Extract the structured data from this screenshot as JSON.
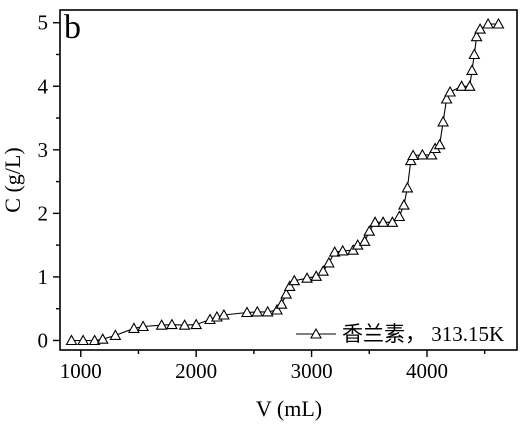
{
  "chart_data": {
    "type": "line",
    "panel_label": "b",
    "xlabel": "V (mL)",
    "ylabel": "C (g/L)",
    "xlim": [
      820,
      4780
    ],
    "ylim": [
      -0.15,
      5.2
    ],
    "xticks": [
      1000,
      2000,
      3000,
      4000
    ],
    "yticks": [
      0,
      1,
      2,
      3,
      4,
      5
    ],
    "x_minor_step": 500,
    "y_minor_step": 0.5,
    "marker": "open-triangle",
    "legend_position": "bottom-right",
    "series": [
      {
        "name": "香兰素， 313.15K",
        "color": "#000000",
        "points": [
          [
            920,
            0.0
          ],
          [
            1020,
            0.0
          ],
          [
            1120,
            0.0
          ],
          [
            1190,
            0.02
          ],
          [
            1300,
            0.08
          ],
          [
            1460,
            0.19
          ],
          [
            1540,
            0.22
          ],
          [
            1700,
            0.24
          ],
          [
            1790,
            0.25
          ],
          [
            1900,
            0.24
          ],
          [
            2000,
            0.25
          ],
          [
            2120,
            0.33
          ],
          [
            2180,
            0.37
          ],
          [
            2240,
            0.4
          ],
          [
            2440,
            0.44
          ],
          [
            2530,
            0.45
          ],
          [
            2620,
            0.45
          ],
          [
            2700,
            0.48
          ],
          [
            2740,
            0.57
          ],
          [
            2780,
            0.73
          ],
          [
            2810,
            0.85
          ],
          [
            2850,
            0.94
          ],
          [
            2960,
            0.98
          ],
          [
            3040,
            1.01
          ],
          [
            3100,
            1.09
          ],
          [
            3150,
            1.22
          ],
          [
            3200,
            1.39
          ],
          [
            3270,
            1.41
          ],
          [
            3360,
            1.42
          ],
          [
            3400,
            1.5
          ],
          [
            3460,
            1.56
          ],
          [
            3500,
            1.72
          ],
          [
            3550,
            1.86
          ],
          [
            3620,
            1.86
          ],
          [
            3700,
            1.86
          ],
          [
            3760,
            1.95
          ],
          [
            3800,
            2.13
          ],
          [
            3830,
            2.4
          ],
          [
            3860,
            2.83
          ],
          [
            3880,
            2.91
          ],
          [
            3960,
            2.92
          ],
          [
            4040,
            2.92
          ],
          [
            4070,
            3.02
          ],
          [
            4110,
            3.08
          ],
          [
            4140,
            3.44
          ],
          [
            4170,
            3.8
          ],
          [
            4200,
            3.91
          ],
          [
            4300,
            4.0
          ],
          [
            4370,
            4.0
          ],
          [
            4390,
            4.25
          ],
          [
            4410,
            4.5
          ],
          [
            4430,
            4.78
          ],
          [
            4460,
            4.9
          ],
          [
            4530,
            4.98
          ],
          [
            4620,
            4.98
          ]
        ]
      }
    ]
  }
}
